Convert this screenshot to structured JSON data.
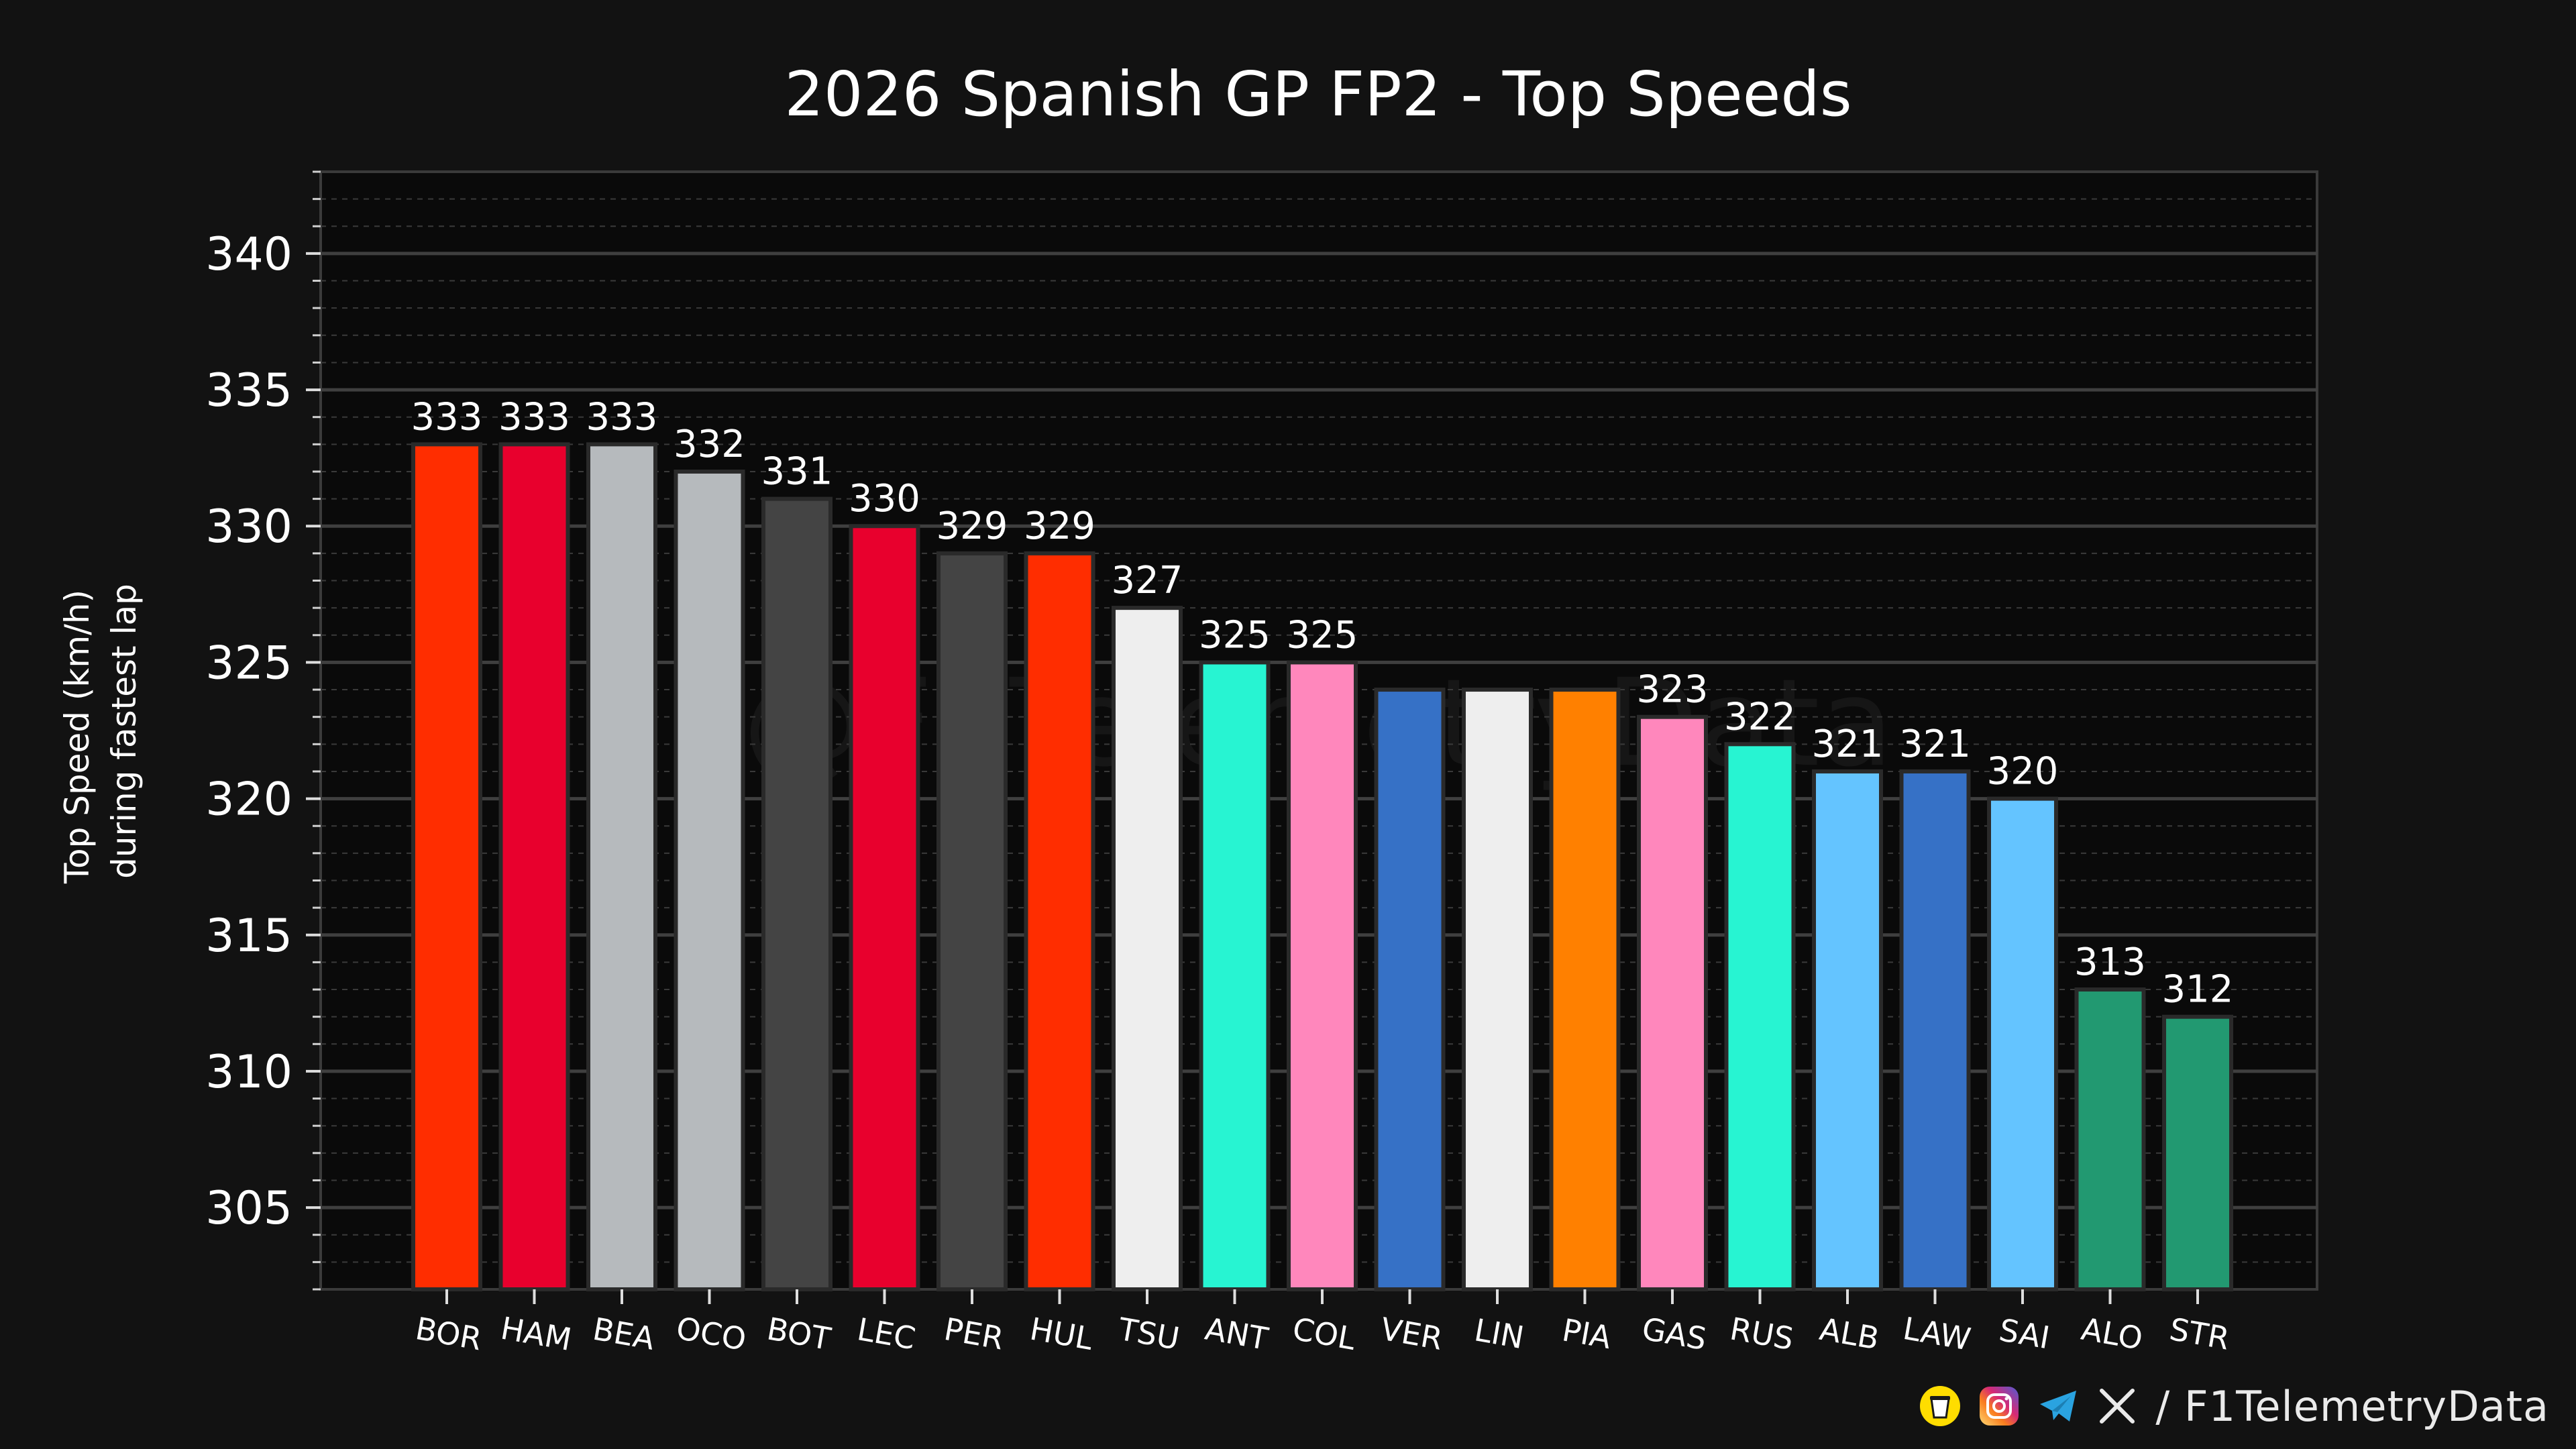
{
  "chart_data": {
    "type": "bar",
    "title": "2026 Spanish GP FP2 - Top Speeds",
    "ylabel_lines": [
      "Top Speed (km/h)",
      "during fastest lap"
    ],
    "xlabel": "",
    "categories": [
      "BOR",
      "HAM",
      "BEA",
      "OCO",
      "BOT",
      "LEC",
      "PER",
      "HUL",
      "TSU",
      "ANT",
      "COL",
      "VER",
      "LIN",
      "PIA",
      "GAS",
      "RUS",
      "ALB",
      "LAW",
      "SAI",
      "ALO",
      "STR"
    ],
    "values": [
      333,
      333,
      333,
      332,
      331,
      330,
      329,
      329,
      327,
      325,
      325,
      324,
      324,
      324,
      323,
      322,
      321,
      321,
      320,
      313,
      312
    ],
    "value_labels": [
      "333",
      "333",
      "333",
      "332",
      "331",
      "330",
      "329",
      "329",
      "327",
      "325",
      "325",
      "",
      "",
      "",
      "323",
      "322",
      "321",
      "321",
      "320",
      "313",
      "312"
    ],
    "colors": [
      "#ff2d00",
      "#e8002d",
      "#b6babd",
      "#b6babd",
      "#444444",
      "#e8002d",
      "#444444",
      "#ff2d00",
      "#eeeeee",
      "#27f4d2",
      "#ff87bc",
      "#3671c6",
      "#eeeeee",
      "#ff8000",
      "#ff87bc",
      "#27f4d2",
      "#64c4ff",
      "#3671c6",
      "#64c4ff",
      "#229971",
      "#229971"
    ],
    "ylim": [
      302,
      343
    ],
    "yticks": [
      305,
      310,
      315,
      320,
      325,
      330,
      335,
      340
    ],
    "grid": true
  },
  "watermark": "@F1TelemetryData",
  "footer": {
    "separator": "/",
    "handle": "F1TelemetryData",
    "icons": [
      "buy-me-a-coffee-icon",
      "instagram-icon",
      "telegram-icon",
      "x-icon"
    ]
  }
}
